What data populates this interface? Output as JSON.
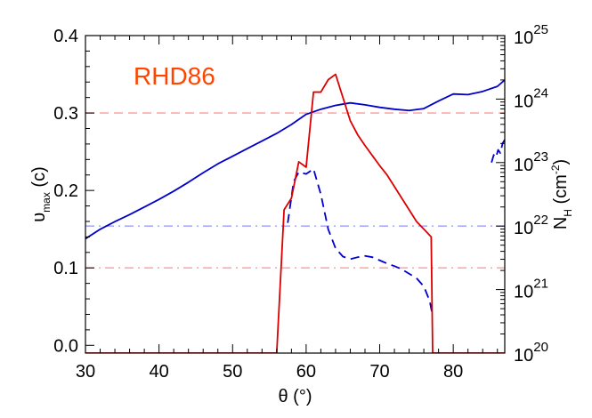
{
  "chart_data": {
    "type": "line",
    "title": "RHD86",
    "title_color": "#ff4500",
    "xlabel": "θ (°)",
    "ylabel_left": {
      "main": "υ",
      "sub": "max",
      "tail": " (c)"
    },
    "ylabel_right": {
      "main": "N",
      "sub": "H",
      "tail": " (cm",
      "sup": "-2",
      "close": ")"
    },
    "xlim": [
      30,
      87
    ],
    "ylim_left": [
      -0.01,
      0.4
    ],
    "ylim_right": [
      1e+20,
      1e+25
    ],
    "right_scale": "log",
    "x_ticks": [
      30,
      40,
      50,
      60,
      70,
      80
    ],
    "x_tick_labels": [
      "30",
      "40",
      "50",
      "60",
      "70",
      "80"
    ],
    "y_left_ticks": [
      0.0,
      0.1,
      0.2,
      0.3,
      0.4
    ],
    "y_left_tick_labels": [
      "0.0",
      "0.1",
      "0.2",
      "0.3",
      "0.4"
    ],
    "y_right_ticks": [
      20,
      21,
      22,
      23,
      24,
      25
    ],
    "y_right_tick_labels": [
      {
        "base": "10",
        "exp": "20"
      },
      {
        "base": "10",
        "exp": "21"
      },
      {
        "base": "10",
        "exp": "22"
      },
      {
        "base": "10",
        "exp": "23"
      },
      {
        "base": "10",
        "exp": "24"
      },
      {
        "base": "10",
        "exp": "25"
      }
    ],
    "reference_lines": [
      {
        "axis": "left",
        "value": 0.3,
        "color": "#ffaaaa",
        "style": "dash"
      },
      {
        "axis": "left",
        "value": 0.1,
        "color": "#ffaaaa",
        "style": "dashdot"
      },
      {
        "axis": "right",
        "value": 22,
        "color": "#aaaaff",
        "style": "dashdot"
      }
    ],
    "series": [
      {
        "axis": "right",
        "color": "#0000cc",
        "style": "solid",
        "x": [
          30,
          32,
          34,
          36,
          38,
          40,
          42,
          44,
          46,
          48,
          50,
          52,
          54,
          56,
          58,
          60,
          62,
          64,
          66,
          68,
          70,
          72,
          74,
          76,
          78,
          80,
          82,
          84,
          86,
          87
        ],
        "y": [
          21.8,
          21.95,
          22.07,
          22.18,
          22.3,
          22.42,
          22.55,
          22.69,
          22.84,
          22.98,
          23.1,
          23.22,
          23.34,
          23.46,
          23.6,
          23.76,
          23.84,
          23.9,
          23.94,
          23.91,
          23.87,
          23.84,
          23.82,
          23.85,
          23.97,
          24.08,
          24.07,
          24.12,
          24.2,
          24.3
        ]
      },
      {
        "axis": "right",
        "color": "#0000cc",
        "style": "dash",
        "x": [
          57.5,
          58.3,
          59,
          60,
          61,
          62,
          63,
          64,
          65,
          66,
          67,
          68,
          69,
          70,
          71,
          72,
          73,
          74,
          75,
          76,
          76.8,
          77.2
        ],
        "y": [
          22.05,
          22.7,
          22.85,
          22.82,
          22.9,
          22.5,
          21.95,
          21.65,
          21.52,
          21.48,
          21.51,
          21.53,
          21.51,
          21.46,
          21.41,
          21.37,
          21.32,
          21.25,
          21.18,
          21.05,
          20.82,
          20.58
        ]
      },
      {
        "axis": "right",
        "color": "#0000cc",
        "style": "dash",
        "x": [
          85.2,
          85.5,
          85.8,
          86.1,
          86.4,
          86.7,
          87
        ],
        "y": [
          23.0,
          23.12,
          23.08,
          23.2,
          23.15,
          23.3,
          23.36
        ]
      },
      {
        "axis": "left",
        "color": "#dd0000",
        "style": "solid",
        "x": [
          30,
          56,
          57,
          58,
          59,
          60,
          61,
          62,
          63,
          64,
          65,
          66,
          67,
          68,
          69,
          70,
          71,
          72,
          73,
          74,
          75,
          76,
          77,
          77.2,
          87
        ],
        "y": [
          -0.01,
          -0.01,
          0.175,
          0.19,
          0.237,
          0.23,
          0.327,
          0.327,
          0.343,
          0.35,
          0.32,
          0.29,
          0.272,
          0.258,
          0.245,
          0.232,
          0.22,
          0.205,
          0.19,
          0.175,
          0.16,
          0.15,
          0.14,
          -0.01,
          -0.01
        ]
      }
    ],
    "grid": false,
    "legend": "none"
  }
}
